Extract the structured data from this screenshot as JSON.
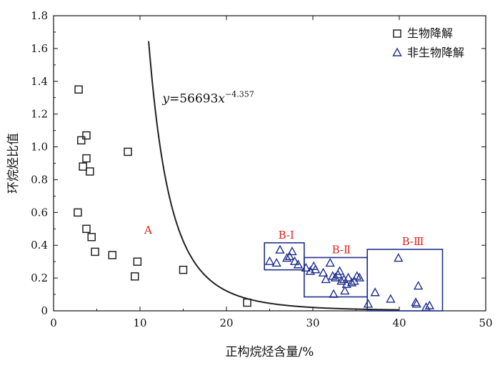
{
  "chart_data": {
    "type": "scatter",
    "title": "",
    "xlabel": "正构烷烃含量/%",
    "ylabel": "环烷烃比值",
    "xlim": [
      0,
      50
    ],
    "ylim": [
      0,
      1.8
    ],
    "x_ticks": [
      "0",
      "10",
      "20",
      "30",
      "40",
      "50"
    ],
    "y_ticks": [
      "0",
      "0.2",
      "0.4",
      "0.6",
      "0.8",
      "1.0",
      "1.2",
      "1.4",
      "1.6",
      "1.8"
    ],
    "grid": false,
    "legend_position": "top-right",
    "series": [
      {
        "name": "生物降解",
        "marker": "square",
        "color": "#222222",
        "points": [
          [
            2.9,
            1.35
          ],
          [
            3.2,
            1.04
          ],
          [
            3.4,
            0.88
          ],
          [
            3.8,
            1.07
          ],
          [
            3.8,
            0.93
          ],
          [
            4.2,
            0.85
          ],
          [
            2.8,
            0.6
          ],
          [
            3.8,
            0.5
          ],
          [
            4.4,
            0.45
          ],
          [
            4.8,
            0.36
          ],
          [
            6.8,
            0.34
          ],
          [
            8.6,
            0.97
          ],
          [
            9.4,
            0.21
          ],
          [
            9.7,
            0.3
          ],
          [
            15.0,
            0.25
          ],
          [
            22.4,
            0.05
          ]
        ]
      },
      {
        "name": "非生物降解",
        "marker": "triangle",
        "color": "#1f2f8c",
        "points": [
          [
            25.0,
            0.3
          ],
          [
            25.8,
            0.29
          ],
          [
            26.2,
            0.37
          ],
          [
            27.0,
            0.32
          ],
          [
            27.3,
            0.33
          ],
          [
            27.6,
            0.36
          ],
          [
            27.9,
            0.3
          ],
          [
            28.3,
            0.28
          ],
          [
            29.2,
            0.26
          ],
          [
            29.7,
            0.24
          ],
          [
            30.1,
            0.27
          ],
          [
            30.3,
            0.25
          ],
          [
            31.2,
            0.23
          ],
          [
            31.5,
            0.19
          ],
          [
            32.0,
            0.29
          ],
          [
            32.3,
            0.21
          ],
          [
            32.6,
            0.2
          ],
          [
            32.9,
            0.22
          ],
          [
            33.1,
            0.24
          ],
          [
            33.3,
            0.18
          ],
          [
            33.6,
            0.19
          ],
          [
            33.9,
            0.16
          ],
          [
            34.1,
            0.2
          ],
          [
            34.5,
            0.17
          ],
          [
            34.8,
            0.18
          ],
          [
            35.1,
            0.21
          ],
          [
            35.4,
            0.2
          ],
          [
            32.4,
            0.1
          ],
          [
            33.7,
            0.12
          ],
          [
            36.4,
            0.04
          ],
          [
            37.2,
            0.11
          ],
          [
            39.0,
            0.07
          ],
          [
            39.9,
            0.32
          ],
          [
            41.9,
            0.05
          ],
          [
            42.0,
            0.04
          ],
          [
            42.2,
            0.15
          ],
          [
            43.1,
            0.02
          ],
          [
            43.5,
            0.03
          ]
        ]
      }
    ],
    "fit_curve": {
      "label_prefix": "y=56693x",
      "exponent_label": "−4.357",
      "a": 56693,
      "b": -4.357,
      "x_range": [
        11.0,
        40.0
      ]
    },
    "annotations": [
      {
        "text": "A",
        "x": 10.5,
        "y": 0.47
      },
      {
        "text": "B-Ⅰ",
        "x": 26.0,
        "y": 0.44
      },
      {
        "text": "B-Ⅱ",
        "x": 32.2,
        "y": 0.35
      },
      {
        "text": "B-Ⅲ",
        "x": 40.3,
        "y": 0.4
      }
    ],
    "regions": [
      {
        "name": "B-Ⅰ",
        "x": [
          24.4,
          29.0
        ],
        "y": [
          0.25,
          0.415
        ]
      },
      {
        "name": "B-Ⅱ",
        "x": [
          29.0,
          36.3
        ],
        "y": [
          0.085,
          0.325
        ]
      },
      {
        "name": "B-Ⅲ",
        "x": [
          36.3,
          45.0
        ],
        "y": [
          0.0,
          0.375
        ]
      }
    ]
  }
}
